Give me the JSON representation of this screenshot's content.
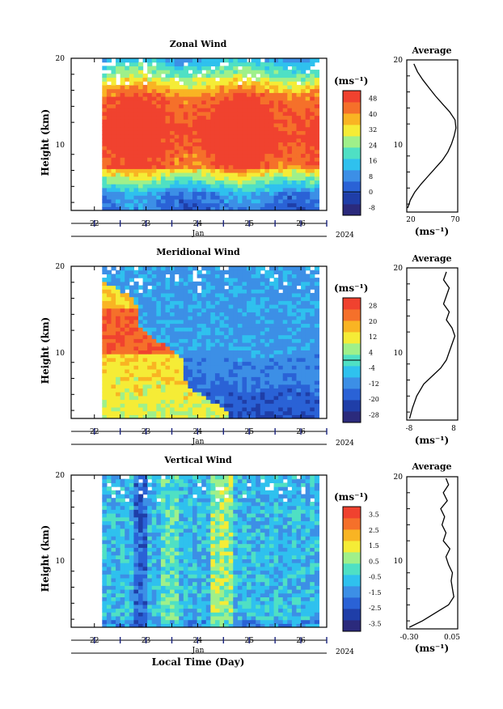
{
  "figure": {
    "year_label": "2024",
    "month_label": "Jan",
    "x_axis_label": "Local Time (Day)",
    "unit_label": "(ms⁻¹)"
  },
  "chart_data": [
    {
      "type": "heatmap",
      "title": "Zonal Wind",
      "ylabel": "Height (km)",
      "xlabel": "",
      "x_ticks": [
        "22",
        "23",
        "24",
        "25",
        "26"
      ],
      "y_ticks": [
        "10",
        "20"
      ],
      "ylim": [
        1,
        20
      ],
      "xlim": [
        21.55,
        26.5
      ],
      "data_span": [
        22.15,
        26.35
      ],
      "colorbar": {
        "unit": "(ms⁻¹)",
        "ticks": [
          "-8",
          "0",
          "8",
          "16",
          "24",
          "32",
          "40",
          "48"
        ],
        "values": [
          -8,
          0,
          8,
          16,
          24,
          32,
          40,
          48
        ],
        "range": [
          -12,
          52
        ],
        "zero_line": 0,
        "colors": [
          "#2b2a7c",
          "#1f3ea8",
          "#2a62d6",
          "#3c8fe6",
          "#2fc1ee",
          "#4fe0c4",
          "#9ff08a",
          "#f5ec36",
          "#f9b423",
          "#f5702a",
          "#f0422f"
        ]
      },
      "average": {
        "title": "Average",
        "xlabel": "(ms⁻¹)",
        "x_ticks": [
          "20",
          "70"
        ],
        "xlim": [
          15,
          72
        ],
        "ylim": [
          1,
          20
        ],
        "profile": [
          [
            16,
            1.5
          ],
          [
            19,
            2.5
          ],
          [
            24,
            3.5
          ],
          [
            31,
            4.5
          ],
          [
            39,
            5.5
          ],
          [
            47,
            6.5
          ],
          [
            55,
            7.5
          ],
          [
            61,
            8.5
          ],
          [
            65,
            9.5
          ],
          [
            68,
            10.5
          ],
          [
            70,
            11.5
          ],
          [
            69,
            12.5
          ],
          [
            63,
            13.5
          ],
          [
            55,
            14.5
          ],
          [
            47,
            15.5
          ],
          [
            40,
            16.5
          ],
          [
            33,
            17.5
          ],
          [
            27,
            18.5
          ],
          [
            23,
            19.5
          ]
        ]
      }
    },
    {
      "type": "heatmap",
      "title": "Meridional Wind",
      "ylabel": "Height (km)",
      "xlabel": "",
      "x_ticks": [
        "22",
        "23",
        "24",
        "25",
        "26"
      ],
      "y_ticks": [
        "10",
        "20"
      ],
      "ylim": [
        1,
        20
      ],
      "xlim": [
        21.55,
        26.5
      ],
      "data_span": [
        22.15,
        26.35
      ],
      "colorbar": {
        "unit": "(ms⁻¹)",
        "ticks": [
          "-28",
          "-20",
          "-12",
          "-4",
          "4",
          "12",
          "20",
          "28"
        ],
        "values": [
          -28,
          -20,
          -12,
          -4,
          4,
          12,
          20,
          28
        ],
        "range": [
          -32,
          32
        ],
        "zero_line": 0,
        "colors": [
          "#2b2a7c",
          "#1f3ea8",
          "#2a62d6",
          "#3c8fe6",
          "#2fc1ee",
          "#4fe0c4",
          "#9ff08a",
          "#f5ec36",
          "#f9b423",
          "#f5702a",
          "#f0422f"
        ]
      },
      "average": {
        "title": "Average",
        "xlabel": "(ms⁻¹)",
        "x_ticks": [
          "-8",
          "8"
        ],
        "xlim": [
          -9,
          9
        ],
        "ylim": [
          1,
          20
        ],
        "profile": [
          [
            -8,
            1.2
          ],
          [
            -7,
            2.5
          ],
          [
            -5.5,
            4
          ],
          [
            -3,
            5.5
          ],
          [
            0,
            6.5
          ],
          [
            3,
            7.5
          ],
          [
            5,
            8.5
          ],
          [
            6,
            9.5
          ],
          [
            7,
            10.5
          ],
          [
            8,
            11.5
          ],
          [
            7,
            12.5
          ],
          [
            5,
            13.5
          ],
          [
            6,
            14.5
          ],
          [
            4,
            15.5
          ],
          [
            5,
            16.5
          ],
          [
            6,
            17.5
          ],
          [
            4,
            18.5
          ],
          [
            5,
            19.5
          ]
        ]
      }
    },
    {
      "type": "heatmap",
      "title": "Vertical Wind",
      "ylabel": "Height (km)",
      "xlabel": "Local Time (Day)",
      "x_ticks": [
        "22",
        "23",
        "24",
        "25",
        "26"
      ],
      "y_ticks": [
        "10",
        "20"
      ],
      "ylim": [
        1,
        20
      ],
      "xlim": [
        21.55,
        26.5
      ],
      "data_span": [
        22.15,
        26.35
      ],
      "colorbar": {
        "unit": "(ms⁻¹)",
        "ticks": [
          "-3.5",
          "-2.5",
          "-1.5",
          "-0.5",
          "0.5",
          "1.5",
          "2.5",
          "3.5"
        ],
        "values": [
          -3.5,
          -2.5,
          -1.5,
          -0.5,
          0.5,
          1.5,
          2.5,
          3.5
        ],
        "range": [
          -4,
          4
        ],
        "zero_line": null,
        "colors": [
          "#2b2a7c",
          "#1f3ea8",
          "#2a62d6",
          "#3c8fe6",
          "#2fc1ee",
          "#4fe0c4",
          "#9ff08a",
          "#f5ec36",
          "#f9b423",
          "#f5702a",
          "#f0422f"
        ]
      },
      "average": {
        "title": "Average",
        "xlabel": "(ms⁻¹)",
        "x_ticks": [
          "-0.30",
          "0.05"
        ],
        "xlim": [
          -0.32,
          0.07
        ],
        "ylim": [
          1,
          20
        ],
        "profile": [
          [
            -0.3,
            1.2
          ],
          [
            -0.2,
            2
          ],
          [
            -0.1,
            3
          ],
          [
            0.0,
            4
          ],
          [
            0.04,
            5
          ],
          [
            0.03,
            6
          ],
          [
            0.02,
            7
          ],
          [
            0.03,
            8
          ],
          [
            0.0,
            9
          ],
          [
            -0.02,
            10
          ],
          [
            0.01,
            11
          ],
          [
            -0.04,
            12
          ],
          [
            -0.02,
            13
          ],
          [
            -0.05,
            14
          ],
          [
            -0.03,
            15
          ],
          [
            -0.06,
            16
          ],
          [
            -0.01,
            17
          ],
          [
            -0.04,
            18
          ],
          [
            0.0,
            19
          ],
          [
            -0.02,
            19.8
          ]
        ]
      }
    }
  ]
}
